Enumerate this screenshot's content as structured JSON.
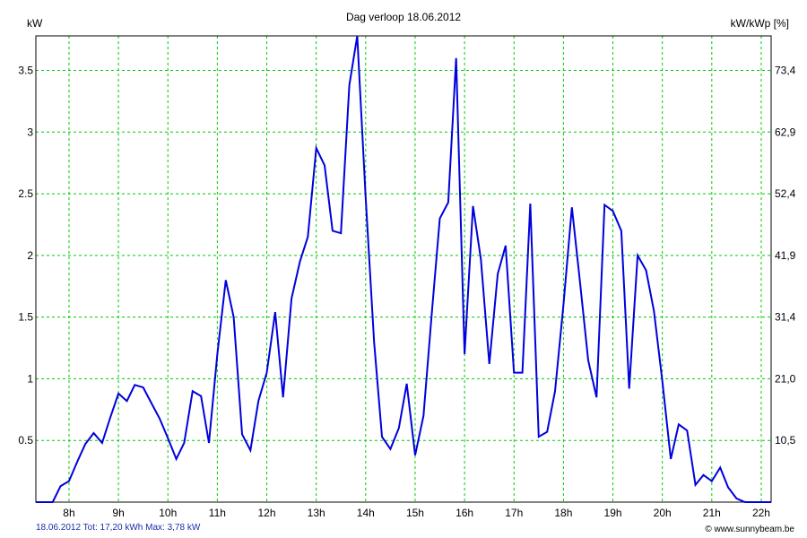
{
  "chart_data": {
    "type": "line",
    "title": "Dag  verloop 18.06.2012",
    "ylabel_left": "kW",
    "ylabel_right": "kW/kWp [%]",
    "x_tick_labels": [
      "8h",
      "9h",
      "10h",
      "11h",
      "12h",
      "13h",
      "14h",
      "15h",
      "16h",
      "17h",
      "18h",
      "19h",
      "20h",
      "21h",
      "22h"
    ],
    "x_tick_values": [
      8,
      9,
      10,
      11,
      12,
      13,
      14,
      15,
      16,
      17,
      18,
      19,
      20,
      21,
      22
    ],
    "y_left_ticks": [
      {
        "value": 0.5,
        "label": "0.5"
      },
      {
        "value": 1,
        "label": "1"
      },
      {
        "value": 1.5,
        "label": "1.5"
      },
      {
        "value": 2,
        "label": "2"
      },
      {
        "value": 2.5,
        "label": "2.5"
      },
      {
        "value": 3,
        "label": "3"
      },
      {
        "value": 3.5,
        "label": "3.5"
      }
    ],
    "y_right_ticks": [
      "10,5",
      "21,0",
      "31,4",
      "41,9",
      "52,4",
      "62,9",
      "73,4"
    ],
    "xlim": [
      7.33,
      22.2
    ],
    "ylim": [
      0,
      3.78
    ],
    "grid": true,
    "colors": {
      "line": "#0000dd",
      "grid": "#00cc00",
      "axis": "#000000"
    },
    "series": [
      {
        "x": [
          7.33,
          7.67,
          7.83,
          8.0,
          8.17,
          8.33,
          8.5,
          8.67,
          8.83,
          9.0,
          9.17,
          9.33,
          9.5,
          9.67,
          9.83,
          10.0,
          10.17,
          10.33,
          10.5,
          10.67,
          10.83,
          11.0,
          11.17,
          11.33,
          11.5,
          11.67,
          11.83,
          12.0,
          12.17,
          12.33,
          12.5,
          12.67,
          12.83,
          13.0,
          13.17,
          13.33,
          13.5,
          13.67,
          13.83,
          14.0,
          14.17,
          14.33,
          14.5,
          14.67,
          14.83,
          15.0,
          15.17,
          15.33,
          15.5,
          15.67,
          15.83,
          16.0,
          16.17,
          16.33,
          16.5,
          16.67,
          16.83,
          17.0,
          17.17,
          17.33,
          17.5,
          17.67,
          17.83,
          18.0,
          18.17,
          18.33,
          18.5,
          18.67,
          18.83,
          19.0,
          19.17,
          19.33,
          19.5,
          19.67,
          19.83,
          20.0,
          20.17,
          20.33,
          20.5,
          20.67,
          20.83,
          21.0,
          21.17,
          21.33,
          21.5,
          21.67,
          21.83,
          22.0,
          22.2
        ],
        "y": [
          0.0,
          0.0,
          0.13,
          0.17,
          0.33,
          0.47,
          0.56,
          0.48,
          0.68,
          0.88,
          0.82,
          0.95,
          0.93,
          0.8,
          0.68,
          0.52,
          0.35,
          0.48,
          0.9,
          0.86,
          0.48,
          1.2,
          1.8,
          1.5,
          0.55,
          0.42,
          0.82,
          1.05,
          1.54,
          0.85,
          1.65,
          1.95,
          2.15,
          2.87,
          2.73,
          2.2,
          2.18,
          3.38,
          3.78,
          2.47,
          1.3,
          0.53,
          0.43,
          0.6,
          0.96,
          0.38,
          0.7,
          1.5,
          2.3,
          2.43,
          3.6,
          1.2,
          2.4,
          1.97,
          1.12,
          1.85,
          2.08,
          1.05,
          1.05,
          2.42,
          0.53,
          0.57,
          0.9,
          1.6,
          2.39,
          1.8,
          1.15,
          0.85,
          2.41,
          2.36,
          2.2,
          0.92,
          2.0,
          1.88,
          1.55,
          0.98,
          0.35,
          0.63,
          0.58,
          0.14,
          0.22,
          0.17,
          0.28,
          0.12,
          0.03,
          0.0,
          0.0,
          0.0,
          0.0
        ]
      }
    ]
  },
  "footer": {
    "left": "18.06.2012 Tot: 17,20 kWh Max: 3,78 kW",
    "right": "© www.sunnybeam.be"
  }
}
